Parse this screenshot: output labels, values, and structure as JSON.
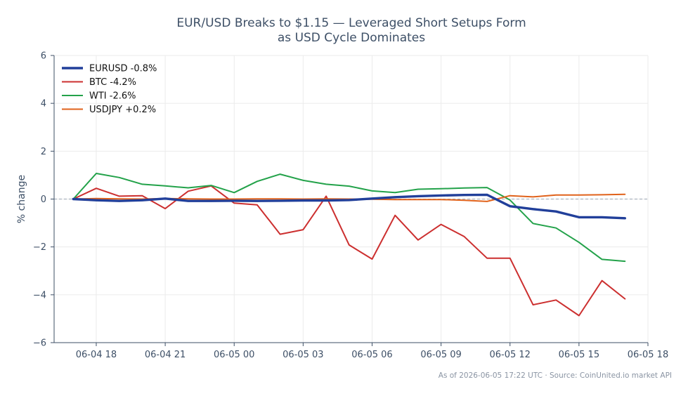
{
  "title_line1": "EUR/USD Breaks to $1.15 — Leveraged Short Setups Form",
  "title_line2": "as USD Cycle Dominates",
  "footer": "As of 2026-06-05 17:22 UTC · Source: CoinUnited.io market API",
  "chart_data": {
    "type": "line",
    "title": "EUR/USD Breaks to $1.15 — Leveraged Short Setups Form as USD Cycle Dominates",
    "ylabel": "% change",
    "xlabel": "",
    "ylim": [
      -6,
      6
    ],
    "yticks": [
      -6,
      -4,
      -2,
      0,
      2,
      4,
      6
    ],
    "ytick_labels": [
      "−6",
      "−4",
      "−2",
      "0",
      "2",
      "4",
      "6"
    ],
    "xlim": [
      "06-04 16:10",
      "06-05 18:00"
    ],
    "xticks": [
      "06-04 18",
      "06-04 21",
      "06-05 00",
      "06-05 03",
      "06-05 06",
      "06-05 09",
      "06-05 12",
      "06-05 15",
      "06-05 18"
    ],
    "grid": true,
    "zero_reference_line": true,
    "legend_position": "top-left",
    "x": [
      "06-04 17:00",
      "06-04 18:00",
      "06-04 19:00",
      "06-04 20:00",
      "06-04 21:00",
      "06-04 22:00",
      "06-04 23:00",
      "06-05 00:00",
      "06-05 01:00",
      "06-05 02:00",
      "06-05 03:00",
      "06-05 04:00",
      "06-05 05:00",
      "06-05 06:00",
      "06-05 07:00",
      "06-05 08:00",
      "06-05 09:00",
      "06-05 10:00",
      "06-05 11:00",
      "06-05 12:00",
      "06-05 13:00",
      "06-05 14:00",
      "06-05 15:00",
      "06-05 16:00",
      "06-05 17:00"
    ],
    "series": [
      {
        "name": "EURUSD -0.8%",
        "color": "#213f9a",
        "emphasis": true,
        "values": [
          0.0,
          -0.05,
          -0.08,
          -0.05,
          0.02,
          -0.08,
          -0.08,
          -0.07,
          -0.08,
          -0.07,
          -0.06,
          -0.06,
          -0.04,
          0.02,
          0.08,
          0.12,
          0.15,
          0.17,
          0.18,
          -0.3,
          -0.42,
          -0.52,
          -0.76,
          -0.76,
          -0.8
        ]
      },
      {
        "name": "BTC -4.2%",
        "color": "#cc2f2f",
        "values": [
          0.0,
          0.45,
          0.12,
          0.14,
          -0.4,
          0.33,
          0.55,
          -0.17,
          -0.24,
          -1.47,
          -1.28,
          0.12,
          -1.92,
          -2.51,
          -0.68,
          -1.71,
          -1.06,
          -1.56,
          -2.47,
          -2.47,
          -4.42,
          -4.22,
          -4.87,
          -3.41,
          -4.17
        ]
      },
      {
        "name": "WTI -2.6%",
        "color": "#23a24a",
        "values": [
          0.0,
          1.07,
          0.9,
          0.62,
          0.55,
          0.47,
          0.57,
          0.27,
          0.74,
          1.04,
          0.78,
          0.62,
          0.54,
          0.34,
          0.27,
          0.41,
          0.43,
          0.46,
          0.48,
          -0.04,
          -1.02,
          -1.21,
          -1.81,
          -2.52,
          -2.6
        ]
      },
      {
        "name": "USDJPY +0.2%",
        "color": "#e0621b",
        "values": [
          0.0,
          0.02,
          0.01,
          0.0,
          0.02,
          0.01,
          0.0,
          0.0,
          0.01,
          0.01,
          0.0,
          0.01,
          0.0,
          -0.01,
          -0.02,
          -0.02,
          -0.02,
          -0.05,
          -0.1,
          0.14,
          0.09,
          0.17,
          0.17,
          0.18,
          0.2
        ]
      }
    ]
  }
}
